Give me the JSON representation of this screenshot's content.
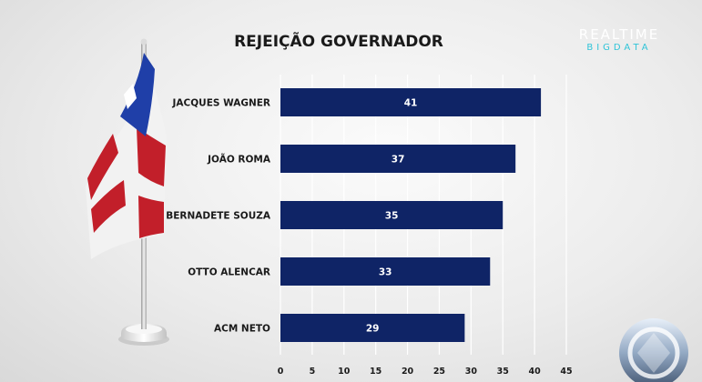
{
  "brand": {
    "line1": "REALTIME",
    "line2": "BIGDATA"
  },
  "colors": {
    "bar": "#0f2466",
    "flag_blue": "#1f3fa8",
    "flag_red": "#c21f2a",
    "brand_accent": "#2fc4d8"
  },
  "icons": {
    "flag": "bahia-flag-icon",
    "logo": "record-tv-logo-icon"
  },
  "chart_data": {
    "type": "bar",
    "orientation": "horizontal",
    "title": "REJEIÇÃO GOVERNADOR",
    "categories": [
      "JACQUES WAGNER",
      "JOÃO ROMA",
      "BERNADETE SOUZA",
      "OTTO ALENCAR",
      "ACM NETO"
    ],
    "values": [
      41,
      37,
      35,
      33,
      29
    ],
    "xlim": [
      0,
      45
    ],
    "xticks": [
      0,
      5,
      10,
      15,
      20,
      25,
      30,
      35,
      40,
      45
    ],
    "grid": true,
    "data_labels": true
  }
}
